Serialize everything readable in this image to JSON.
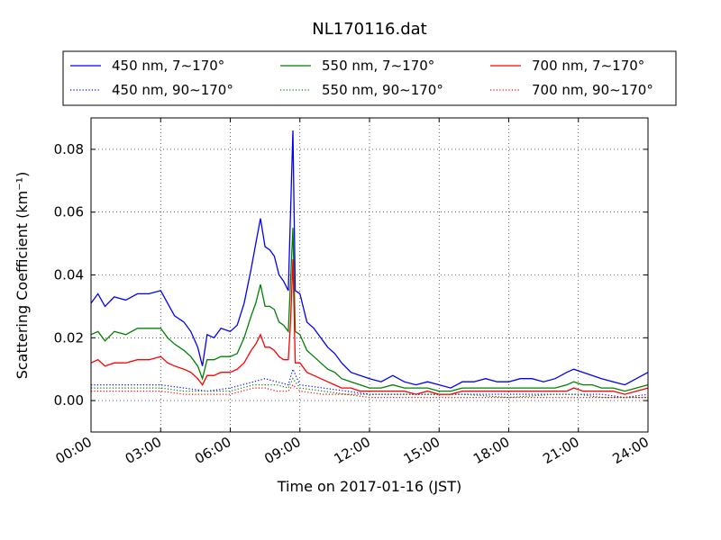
{
  "chart_data": {
    "type": "line",
    "title": "NL170116.dat",
    "xlabel": "Time on 2017-01-16 (JST)",
    "ylabel": "Scattering Coefficient (km⁻¹)",
    "xlim": [
      "00:00",
      "24:00"
    ],
    "ylim": [
      -0.01,
      0.09
    ],
    "x_unit": "hours since 00:00",
    "x_ticks": [
      "00:00",
      "03:00",
      "06:00",
      "09:00",
      "12:00",
      "15:00",
      "18:00",
      "21:00",
      "24:00"
    ],
    "y_ticks": [
      "0.00",
      "0.02",
      "0.04",
      "0.06",
      "0.08"
    ],
    "grid": true,
    "legend_placement": "top",
    "series": [
      {
        "name": "450 nm, 7∼170°",
        "color": "#0000ff",
        "style": "solid",
        "x": [
          0,
          0.3,
          0.6,
          1.0,
          1.5,
          2.0,
          2.5,
          3.0,
          3.3,
          3.6,
          4.0,
          4.3,
          4.6,
          4.8,
          5.0,
          5.3,
          5.6,
          6.0,
          6.3,
          6.6,
          6.9,
          7.1,
          7.3,
          7.5,
          7.7,
          7.9,
          8.1,
          8.3,
          8.5,
          8.6,
          8.7,
          8.8,
          9.0,
          9.3,
          9.6,
          9.9,
          10.2,
          10.5,
          10.8,
          11.2,
          11.6,
          12.0,
          12.5,
          13.0,
          13.5,
          14.0,
          14.5,
          15.0,
          15.5,
          16.0,
          16.5,
          17.0,
          17.5,
          18.0,
          18.5,
          19.0,
          19.5,
          20.0,
          20.5,
          20.8,
          21.2,
          21.6,
          22.0,
          22.5,
          23.0,
          23.5,
          24.0
        ],
        "y": [
          0.031,
          0.034,
          0.03,
          0.033,
          0.032,
          0.034,
          0.034,
          0.035,
          0.031,
          0.027,
          0.025,
          0.022,
          0.017,
          0.011,
          0.021,
          0.02,
          0.023,
          0.022,
          0.024,
          0.031,
          0.042,
          0.05,
          0.058,
          0.049,
          0.048,
          0.046,
          0.04,
          0.038,
          0.035,
          0.06,
          0.086,
          0.035,
          0.034,
          0.025,
          0.023,
          0.02,
          0.017,
          0.015,
          0.012,
          0.009,
          0.008,
          0.007,
          0.006,
          0.008,
          0.006,
          0.005,
          0.006,
          0.005,
          0.004,
          0.006,
          0.006,
          0.007,
          0.006,
          0.006,
          0.007,
          0.007,
          0.006,
          0.007,
          0.009,
          0.01,
          0.009,
          0.008,
          0.007,
          0.006,
          0.005,
          0.007,
          0.009
        ]
      },
      {
        "name": "450 nm, 90∼170°",
        "color": "#0000ff",
        "style": "dotted",
        "x": [
          0,
          1.0,
          2.0,
          3.0,
          4.0,
          5.0,
          6.0,
          7.0,
          7.5,
          8.0,
          8.5,
          8.7,
          9.0,
          10.0,
          11.0,
          12.0,
          14.0,
          16.0,
          18.0,
          20.0,
          21.0,
          22.0,
          23.0,
          24.0
        ],
        "y": [
          0.005,
          0.005,
          0.005,
          0.005,
          0.004,
          0.003,
          0.004,
          0.006,
          0.007,
          0.006,
          0.005,
          0.01,
          0.005,
          0.004,
          0.003,
          0.002,
          0.002,
          0.002,
          0.002,
          0.002,
          0.002,
          0.002,
          0.001,
          0.002
        ]
      },
      {
        "name": "550 nm, 7∼170°",
        "color": "#008000",
        "style": "solid",
        "x": [
          0,
          0.3,
          0.6,
          1.0,
          1.5,
          2.0,
          2.5,
          3.0,
          3.3,
          3.6,
          4.0,
          4.3,
          4.6,
          4.8,
          5.0,
          5.3,
          5.6,
          6.0,
          6.3,
          6.6,
          6.9,
          7.1,
          7.3,
          7.5,
          7.7,
          7.9,
          8.1,
          8.3,
          8.5,
          8.6,
          8.7,
          8.8,
          9.0,
          9.3,
          9.6,
          9.9,
          10.2,
          10.5,
          10.8,
          11.2,
          11.6,
          12.0,
          12.5,
          13.0,
          13.5,
          14.0,
          14.5,
          15.0,
          15.5,
          16.0,
          16.5,
          17.0,
          17.5,
          18.0,
          18.5,
          19.0,
          19.5,
          20.0,
          20.5,
          20.8,
          21.2,
          21.6,
          22.0,
          22.5,
          23.0,
          23.5,
          24.0
        ],
        "y": [
          0.021,
          0.022,
          0.019,
          0.022,
          0.021,
          0.023,
          0.023,
          0.023,
          0.02,
          0.018,
          0.016,
          0.014,
          0.011,
          0.007,
          0.013,
          0.013,
          0.014,
          0.014,
          0.015,
          0.02,
          0.027,
          0.031,
          0.037,
          0.03,
          0.03,
          0.029,
          0.025,
          0.024,
          0.022,
          0.038,
          0.055,
          0.022,
          0.021,
          0.016,
          0.014,
          0.012,
          0.01,
          0.009,
          0.007,
          0.006,
          0.005,
          0.004,
          0.004,
          0.005,
          0.004,
          0.004,
          0.004,
          0.003,
          0.003,
          0.004,
          0.004,
          0.004,
          0.004,
          0.004,
          0.004,
          0.004,
          0.004,
          0.004,
          0.005,
          0.006,
          0.005,
          0.005,
          0.004,
          0.004,
          0.003,
          0.004,
          0.005
        ]
      },
      {
        "name": "550 nm, 90∼170°",
        "color": "#008000",
        "style": "dotted",
        "x": [
          0,
          1.0,
          2.0,
          3.0,
          4.0,
          5.0,
          6.0,
          7.0,
          7.5,
          8.0,
          8.5,
          8.7,
          9.0,
          10.0,
          11.0,
          12.0,
          14.0,
          16.0,
          18.0,
          20.0,
          21.0,
          22.0,
          23.0,
          24.0
        ],
        "y": [
          0.004,
          0.004,
          0.004,
          0.004,
          0.003,
          0.003,
          0.003,
          0.005,
          0.005,
          0.005,
          0.004,
          0.007,
          0.004,
          0.003,
          0.002,
          0.002,
          0.002,
          0.002,
          0.001,
          0.002,
          0.002,
          0.001,
          0.001,
          0.001
        ]
      },
      {
        "name": "700 nm, 7∼170°",
        "color": "#ff0000",
        "style": "solid",
        "x": [
          0,
          0.3,
          0.6,
          1.0,
          1.5,
          2.0,
          2.5,
          3.0,
          3.3,
          3.6,
          4.0,
          4.3,
          4.6,
          4.8,
          5.0,
          5.3,
          5.6,
          6.0,
          6.3,
          6.6,
          6.9,
          7.1,
          7.3,
          7.5,
          7.7,
          7.9,
          8.1,
          8.3,
          8.5,
          8.6,
          8.7,
          8.8,
          9.0,
          9.3,
          9.6,
          9.9,
          10.2,
          10.5,
          10.8,
          11.2,
          11.6,
          12.0,
          12.5,
          13.0,
          13.5,
          14.0,
          14.5,
          15.0,
          15.5,
          16.0,
          16.5,
          17.0,
          17.5,
          18.0,
          18.5,
          19.0,
          19.5,
          20.0,
          20.5,
          20.8,
          21.2,
          21.6,
          22.0,
          22.5,
          23.0,
          23.5,
          24.0
        ],
        "y": [
          0.012,
          0.013,
          0.011,
          0.012,
          0.012,
          0.013,
          0.013,
          0.014,
          0.012,
          0.011,
          0.01,
          0.009,
          0.007,
          0.005,
          0.008,
          0.008,
          0.009,
          0.009,
          0.01,
          0.012,
          0.016,
          0.018,
          0.021,
          0.017,
          0.017,
          0.016,
          0.014,
          0.013,
          0.013,
          0.025,
          0.045,
          0.012,
          0.012,
          0.009,
          0.008,
          0.007,
          0.006,
          0.005,
          0.004,
          0.004,
          0.003,
          0.003,
          0.003,
          0.003,
          0.003,
          0.002,
          0.003,
          0.002,
          0.002,
          0.003,
          0.003,
          0.003,
          0.003,
          0.003,
          0.003,
          0.003,
          0.003,
          0.003,
          0.003,
          0.004,
          0.003,
          0.003,
          0.003,
          0.003,
          0.002,
          0.003,
          0.004
        ]
      },
      {
        "name": "700 nm, 90∼170°",
        "color": "#ff0000",
        "style": "dotted",
        "x": [
          0,
          1.0,
          2.0,
          3.0,
          4.0,
          5.0,
          6.0,
          7.0,
          7.5,
          8.0,
          8.5,
          8.7,
          9.0,
          10.0,
          11.0,
          12.0,
          14.0,
          16.0,
          18.0,
          20.0,
          21.0,
          22.0,
          23.0,
          24.0
        ],
        "y": [
          0.003,
          0.003,
          0.003,
          0.003,
          0.002,
          0.002,
          0.002,
          0.004,
          0.004,
          0.003,
          0.003,
          0.005,
          0.003,
          0.002,
          0.002,
          0.001,
          0.001,
          0.001,
          0.001,
          0.001,
          0.001,
          0.001,
          0.001,
          0.001
        ]
      }
    ]
  }
}
